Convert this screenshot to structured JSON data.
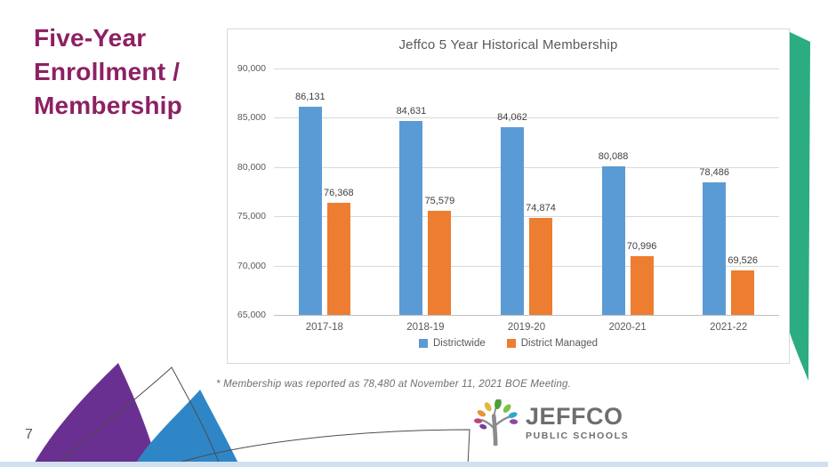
{
  "slide": {
    "title_lines": [
      "Five-Year",
      "Enrollment /",
      "Membership"
    ],
    "page_number": "7",
    "footnote": "* Membership was reported as 78,480 at November 11, 2021 BOE Meeting.",
    "colors": {
      "title_text": "#8D2063",
      "ribbon_green": "#2BAC82",
      "sail_purple": "#6A3091",
      "sail_blue": "#2F86C7",
      "bottom_strip": "#CFE0F2"
    }
  },
  "logo": {
    "name": "JEFFCO",
    "subtitle": "PUBLIC SCHOOLS",
    "trunk_color": "#8B8B8E",
    "leaf_colors": [
      "#4E9E3A",
      "#7DC242",
      "#2FA8CC",
      "#8A4A9E",
      "#E3B93C",
      "#E8923C",
      "#C2427A",
      "#7A3F98"
    ]
  },
  "chart_data": {
    "type": "bar",
    "title": "Jeffco 5 Year Historical Membership",
    "categories": [
      "2017-18",
      "2018-19",
      "2019-20",
      "2020-21",
      "2021-22"
    ],
    "series": [
      {
        "name": "Districtwide",
        "color": "#5B9BD5",
        "values": [
          86131,
          84631,
          84062,
          80088,
          78486
        ]
      },
      {
        "name": "District Managed",
        "color": "#ED7D31",
        "values": [
          76368,
          75579,
          74874,
          70996,
          69526
        ]
      }
    ],
    "xlabel": "",
    "ylabel": "",
    "ylim": [
      65000,
      90000
    ],
    "ytick_step": 5000,
    "grid": true,
    "data_labels": true,
    "legend_position": "bottom"
  }
}
